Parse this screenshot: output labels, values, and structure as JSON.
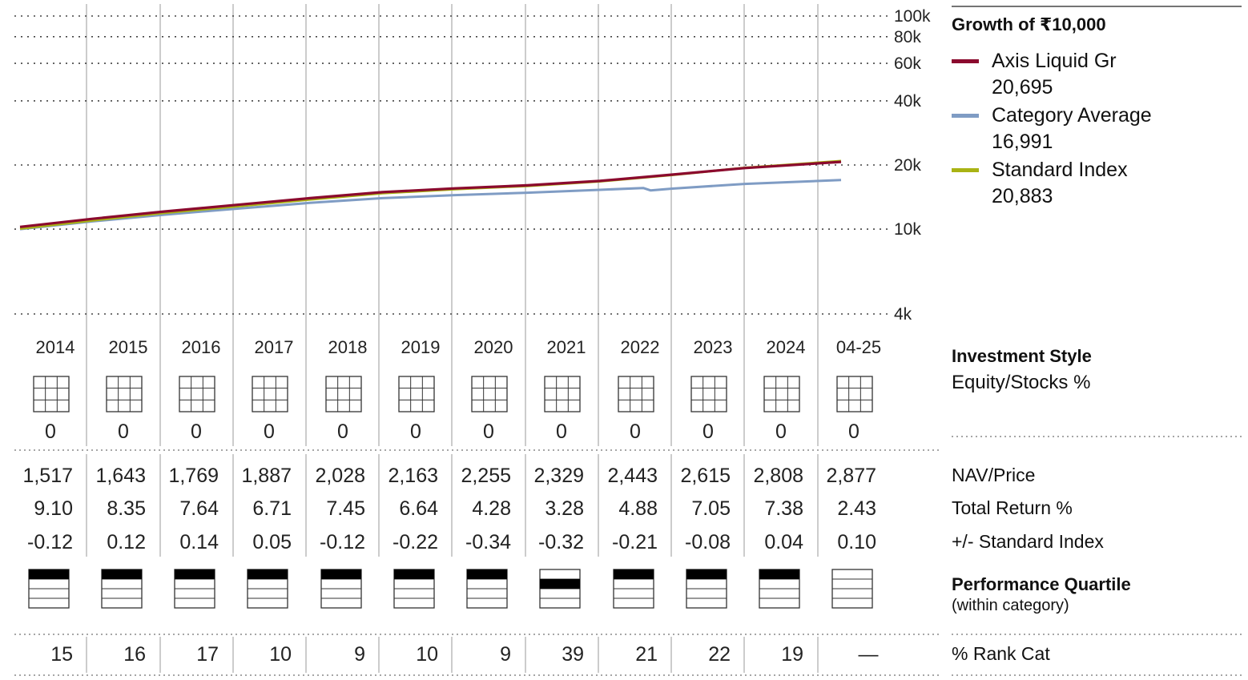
{
  "legend": {
    "title": "Growth of  ₹10,000",
    "items": [
      {
        "name": "Axis Liquid Gr",
        "value": "20,695",
        "color": "#8b0a2e"
      },
      {
        "name": "Category Average",
        "value": "16,991",
        "color": "#7f9cc4"
      },
      {
        "name": "Standard Index",
        "value": "20,883",
        "color": "#a9b314"
      }
    ]
  },
  "investment_style": {
    "title": "Investment Style",
    "subtitle": "Equity/Stocks %"
  },
  "row_labels": {
    "nav": "NAV/Price",
    "total_return": "Total Return %",
    "vs_index": "+/- Standard Index",
    "quartile_title": "Performance Quartile",
    "quartile_sub": "(within category)",
    "rank": "% Rank Cat"
  },
  "chart_data": {
    "type": "line",
    "title": "Growth of  ₹10,000",
    "y_scale": "log",
    "ylim": [
      4000,
      100000
    ],
    "y_ticks": [
      {
        "value": 100000,
        "label": "100k"
      },
      {
        "value": 80000,
        "label": "80k"
      },
      {
        "value": 60000,
        "label": "60k"
      },
      {
        "value": 40000,
        "label": "40k"
      },
      {
        "value": 20000,
        "label": "20k"
      },
      {
        "value": 10000,
        "label": "10k"
      },
      {
        "value": 4000,
        "label": "4k"
      }
    ],
    "x_range": [
      2014.0,
      2025.33
    ],
    "years": [
      "2014",
      "2015",
      "2016",
      "2017",
      "2018",
      "2019",
      "2020",
      "2021",
      "2022",
      "2023",
      "2024",
      "04-25"
    ],
    "series": [
      {
        "name": "Axis Liquid Gr",
        "color": "#8b0a2e",
        "points": [
          [
            2014.0,
            10250
          ],
          [
            2015.0,
            11180
          ],
          [
            2016.0,
            12110
          ],
          [
            2017.0,
            13010
          ],
          [
            2018.0,
            13980
          ],
          [
            2019.0,
            14910
          ],
          [
            2020.0,
            15540
          ],
          [
            2021.0,
            16050
          ],
          [
            2022.0,
            16830
          ],
          [
            2023.0,
            18030
          ],
          [
            2024.0,
            19360
          ],
          [
            2025.33,
            20695
          ]
        ]
      },
      {
        "name": "Category Average",
        "color": "#7f9cc4",
        "points": [
          [
            2014.0,
            10000
          ],
          [
            2015.0,
            10880
          ],
          [
            2016.0,
            11700
          ],
          [
            2017.0,
            12480
          ],
          [
            2018.0,
            13280
          ],
          [
            2019.0,
            13980
          ],
          [
            2020.0,
            14440
          ],
          [
            2021.0,
            14820
          ],
          [
            2022.0,
            15300
          ],
          [
            2022.6,
            15600
          ],
          [
            2022.7,
            15200
          ],
          [
            2023.0,
            15500
          ],
          [
            2024.0,
            16300
          ],
          [
            2025.33,
            16991
          ]
        ]
      },
      {
        "name": "Standard Index",
        "color": "#a9b314",
        "points": [
          [
            2014.0,
            10050
          ],
          [
            2015.0,
            10990
          ],
          [
            2016.0,
            11920
          ],
          [
            2017.0,
            12800
          ],
          [
            2018.0,
            13770
          ],
          [
            2019.0,
            14730
          ],
          [
            2020.0,
            15400
          ],
          [
            2021.0,
            15950
          ],
          [
            2022.0,
            16750
          ],
          [
            2023.0,
            17950
          ],
          [
            2024.0,
            19400
          ],
          [
            2025.33,
            20883
          ]
        ]
      }
    ]
  },
  "equity_pct": [
    "0",
    "0",
    "0",
    "0",
    "0",
    "0",
    "0",
    "0",
    "0",
    "0",
    "0",
    "0"
  ],
  "nav": [
    "1,517",
    "1,643",
    "1,769",
    "1,887",
    "2,028",
    "2,163",
    "2,255",
    "2,329",
    "2,443",
    "2,615",
    "2,808",
    "2,877"
  ],
  "total_return": [
    "9.10",
    "8.35",
    "7.64",
    "6.71",
    "7.45",
    "6.64",
    "4.28",
    "3.28",
    "4.88",
    "7.05",
    "7.38",
    "2.43"
  ],
  "vs_index": [
    "-0.12",
    "0.12",
    "0.14",
    "0.05",
    "-0.12",
    "-0.22",
    "-0.34",
    "-0.32",
    "-0.21",
    "-0.08",
    "0.04",
    "0.10"
  ],
  "quartile": [
    1,
    1,
    1,
    1,
    1,
    1,
    1,
    2,
    1,
    1,
    1,
    0
  ],
  "rank": [
    "15",
    "16",
    "17",
    "10",
    "9",
    "10",
    "9",
    "39",
    "21",
    "22",
    "19",
    "—"
  ]
}
